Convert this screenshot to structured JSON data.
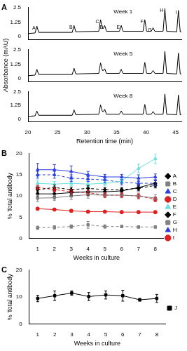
{
  "chart_data": [
    {
      "type": "line",
      "panel_label": "A",
      "title": "Week 1",
      "color": "#000000",
      "grid": false,
      "tick_labels": "y",
      "x": [
        20,
        21.2,
        21.5,
        21.8,
        27.5,
        27.8,
        28.1,
        32.0,
        32.3,
        32.6,
        32.8,
        33.0,
        33.3,
        35.5,
        35.8,
        36.1,
        39.5,
        39.8,
        40.1,
        40.9,
        41.2,
        41.5,
        42.9,
        43.2,
        43.5,
        45.2,
        45.5,
        45.8,
        46
      ],
      "values": [
        0.25,
        0.3,
        0.9,
        0.35,
        0.35,
        0.95,
        0.4,
        0.45,
        1.45,
        0.7,
        0.7,
        0.95,
        0.45,
        0.45,
        0.95,
        0.45,
        0.45,
        1.45,
        0.45,
        0.45,
        0.75,
        0.45,
        0.45,
        2.4,
        0.45,
        0.4,
        2.25,
        0.4,
        0.4
      ],
      "xlim": [
        20,
        46
      ],
      "ylim": [
        -0.25,
        2.5
      ],
      "yticks": [
        0,
        1.25,
        2.5
      ],
      "annotations": [
        {
          "text": "A",
          "x": 21.5,
          "y": 0.9
        },
        {
          "text": "B",
          "x": 27.8,
          "y": 0.95
        },
        {
          "text": "C",
          "x": 32.3,
          "y": 1.45
        },
        {
          "text": "D",
          "x": 33.0,
          "y": 0.95
        },
        {
          "text": "E",
          "x": 35.8,
          "y": 0.95
        },
        {
          "text": "F",
          "x": 39.8,
          "y": 1.45
        },
        {
          "text": "G",
          "x": 41.2,
          "y": 0.75
        },
        {
          "text": "H",
          "x": 43.2,
          "y": 2.4
        },
        {
          "text": "I",
          "x": 45.5,
          "y": 2.25
        }
      ]
    },
    {
      "type": "line",
      "title": "Week 5",
      "ylabel": "Absorbance (mAU)",
      "color": "#000000",
      "grid": false,
      "tick_labels": "y",
      "x": [
        20,
        21.2,
        21.5,
        21.8,
        27.5,
        27.8,
        28.1,
        32.0,
        32.3,
        32.6,
        32.8,
        33.0,
        33.3,
        35.5,
        35.8,
        36.1,
        39.5,
        39.8,
        40.1,
        40.9,
        41.2,
        41.5,
        42.9,
        43.2,
        43.5,
        45.2,
        45.5,
        45.8,
        46
      ],
      "values": [
        0.25,
        0.3,
        0.8,
        0.35,
        0.35,
        0.9,
        0.4,
        0.45,
        1.35,
        0.7,
        0.7,
        0.85,
        0.45,
        0.45,
        0.8,
        0.45,
        0.45,
        1.4,
        0.45,
        0.45,
        0.7,
        0.45,
        0.45,
        2.35,
        0.45,
        0.4,
        2.2,
        0.4,
        0.4
      ],
      "xlim": [
        20,
        46
      ],
      "ylim": [
        -0.25,
        2.5
      ],
      "yticks": [
        0,
        1.25,
        2.5
      ]
    },
    {
      "type": "line",
      "title": "Week 8",
      "xlabel": "Retention time (min)",
      "color": "#000000",
      "grid": false,
      "x": [
        20,
        21.2,
        21.5,
        21.8,
        27.5,
        27.8,
        28.1,
        32.0,
        32.3,
        32.6,
        32.8,
        33.0,
        33.3,
        35.5,
        35.8,
        36.1,
        39.5,
        39.8,
        40.1,
        40.9,
        41.2,
        41.5,
        42.9,
        43.2,
        43.5,
        45.2,
        45.5,
        45.8,
        46
      ],
      "values": [
        0.25,
        0.3,
        0.75,
        0.35,
        0.35,
        0.85,
        0.4,
        0.45,
        1.3,
        0.7,
        0.7,
        0.9,
        0.45,
        0.45,
        0.75,
        0.45,
        0.45,
        1.35,
        0.45,
        0.45,
        0.7,
        0.45,
        0.45,
        2.3,
        0.45,
        0.4,
        2.2,
        0.4,
        0.4
      ],
      "xlim": [
        20,
        46
      ],
      "xticks": [
        20,
        25,
        30,
        35,
        40,
        45
      ],
      "ylim": [
        -0.25,
        2.5
      ],
      "yticks": [
        0,
        1.25,
        2.5
      ]
    },
    {
      "type": "line",
      "panel_label": "B",
      "xlabel": "Weeks in culture",
      "ylabel": "% Total antibody",
      "grid": false,
      "legend": "right",
      "x": [
        1,
        2,
        3,
        4,
        5,
        6,
        7,
        8
      ],
      "xlim": [
        0.5,
        8.5
      ],
      "xticks": [
        1,
        2,
        3,
        4,
        5,
        6,
        7,
        8
      ],
      "ylim": [
        0,
        20
      ],
      "yticks": [
        0,
        5,
        10,
        15,
        20
      ],
      "series": [
        {
          "name": "A",
          "color": "#000000",
          "marker": "diamond",
          "line_style": "solid",
          "values": [
            10.5,
            10.5,
            10.8,
            11,
            11,
            11.2,
            12,
            13
          ],
          "errors": [
            0.5,
            0.5,
            0.6,
            0.8,
            0.5,
            0.5,
            0.6,
            0.8
          ]
        },
        {
          "name": "B",
          "color": "#808080",
          "marker": "square",
          "line_style": "solid",
          "values": [
            9.5,
            9.6,
            10,
            10.3,
            10.2,
            10.2,
            10,
            9.5
          ],
          "errors": [
            0.8,
            0.6,
            0.8,
            0.8,
            0.6,
            0.6,
            0.7,
            0.8
          ]
        },
        {
          "name": "C",
          "color": "#2b3fe0",
          "marker": "triangle",
          "line_style": "solid",
          "values": [
            16.2,
            16.2,
            15.8,
            15,
            14.5,
            14.5,
            14.2,
            14.5
          ],
          "errors": [
            1.5,
            1.2,
            1.3,
            0.8,
            0.6,
            0.6,
            0.8,
            0.7
          ]
        },
        {
          "name": "D",
          "color": "#e02020",
          "marker": "circle",
          "line_style": "solid",
          "values": [
            7,
            6.8,
            6.5,
            6.3,
            6.3,
            6.2,
            6.2,
            6.2
          ],
          "errors": [
            0.3,
            0.3,
            0.3,
            0.3,
            0.3,
            0.3,
            0.3,
            0.3
          ]
        },
        {
          "name": "E",
          "color": "#66e0e0",
          "marker": "triangle",
          "line_style": "solid",
          "values": [
            13,
            12.8,
            13,
            12.8,
            13,
            13.5,
            16.5,
            18.8
          ],
          "errors": [
            0.8,
            0.6,
            0.6,
            0.6,
            0.5,
            0.6,
            1,
            1.2
          ]
        },
        {
          "name": "F",
          "color": "#000000",
          "marker": "diamond",
          "line_style": "dashed",
          "values": [
            11.5,
            12,
            11.5,
            11.8,
            11.5,
            11.5,
            11.8,
            12.5
          ],
          "errors": [
            0.6,
            0.6,
            0.6,
            0.6,
            0.5,
            0.5,
            0.6,
            0.6
          ]
        },
        {
          "name": "G",
          "color": "#808080",
          "marker": "square",
          "line_style": "dashed",
          "values": [
            2.5,
            2.6,
            2.8,
            3.2,
            2.8,
            2.8,
            2.7,
            2.7
          ],
          "errors": [
            0.4,
            0.4,
            0.4,
            0.8,
            0.4,
            0.3,
            0.3,
            0.3
          ]
        },
        {
          "name": "H",
          "color": "#2b3fe0",
          "marker": "triangle",
          "line_style": "dashed",
          "values": [
            15,
            15,
            14.2,
            14,
            13.8,
            13.2,
            13,
            13
          ],
          "errors": [
            0.8,
            0.8,
            0.8,
            0.6,
            0.6,
            0.6,
            0.6,
            0.6
          ]
        },
        {
          "name": "I",
          "color": "#e02020",
          "marker": "circle",
          "line_style": "dashed",
          "values": [
            12,
            11.5,
            11,
            10.8,
            10.2,
            10.2,
            10,
            9.2
          ],
          "errors": [
            0.5,
            0.5,
            0.5,
            0.5,
            0.5,
            0.5,
            0.5,
            0.5
          ]
        }
      ]
    },
    {
      "type": "line",
      "panel_label": "C",
      "xlabel": "Weeks in culture",
      "ylabel": "% Total antibody",
      "grid": false,
      "legend": "right",
      "x": [
        1,
        2,
        3,
        4,
        5,
        6,
        7,
        8
      ],
      "xlim": [
        0.5,
        8.5
      ],
      "xticks": [
        1,
        2,
        3,
        4,
        5,
        6,
        7,
        8
      ],
      "ylim": [
        0,
        20
      ],
      "yticks": [
        0,
        10,
        20
      ],
      "series": [
        {
          "name": "J",
          "color": "#000000",
          "marker": "square",
          "line_style": "solid",
          "values": [
            9.5,
            10.5,
            11.5,
            10.2,
            10.8,
            10.5,
            9,
            9.5
          ],
          "errors": [
            1.2,
            1.8,
            0.8,
            1.5,
            1.5,
            2,
            0.5,
            1.5
          ]
        }
      ]
    }
  ]
}
